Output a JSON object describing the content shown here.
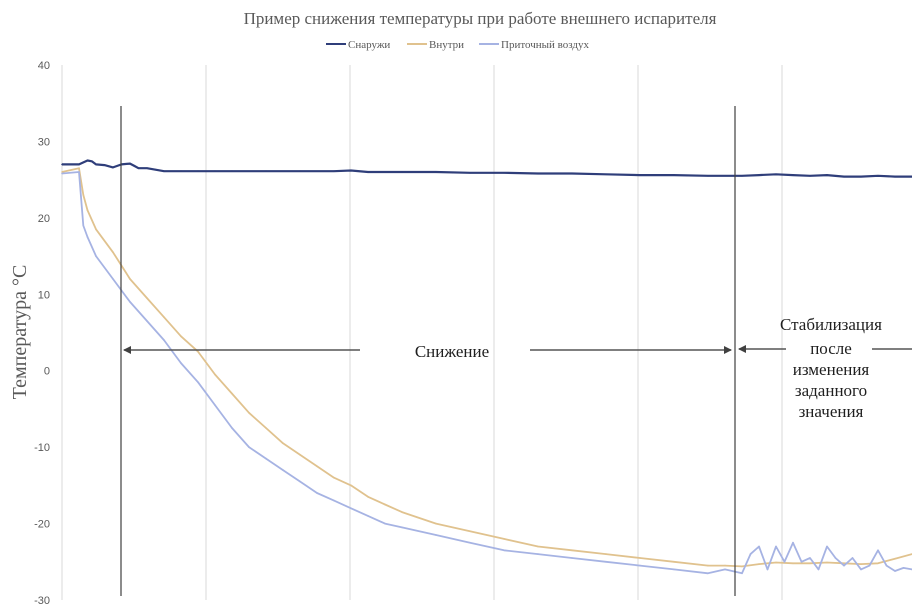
{
  "chart_data": {
    "type": "line",
    "title": "Пример снижения температуры при работе внешнего испарителя",
    "xlabel": "",
    "ylabel": "Температура °C",
    "ylim": [
      -30,
      40
    ],
    "yticks": [
      40,
      30,
      20,
      10,
      0,
      -10,
      -20,
      -30
    ],
    "xlim": [
      0,
      100
    ],
    "grid": "vertical gridlines",
    "legend": "top-center",
    "series": [
      {
        "name": "Снаружи",
        "color": "#2f3e7a",
        "x": [
          0,
          2,
          3,
          3.5,
          4,
          5,
          6,
          7,
          8,
          8.5,
          9,
          10,
          11,
          12,
          14,
          16,
          18,
          20,
          24,
          28,
          32,
          34,
          36,
          40,
          44,
          48,
          52,
          56,
          60,
          64,
          68,
          72,
          76,
          80,
          82,
          84,
          86,
          88,
          90,
          92,
          94,
          96,
          98,
          100
        ],
        "values": [
          27,
          27,
          27.5,
          27.4,
          27,
          26.9,
          26.6,
          27,
          27.1,
          26.8,
          26.5,
          26.5,
          26.3,
          26.1,
          26.1,
          26.1,
          26.1,
          26.1,
          26.1,
          26.1,
          26.1,
          26.2,
          26,
          26,
          26,
          25.9,
          25.9,
          25.8,
          25.8,
          25.7,
          25.6,
          25.6,
          25.5,
          25.5,
          25.6,
          25.7,
          25.6,
          25.5,
          25.6,
          25.4,
          25.4,
          25.5,
          25.4,
          25.4
        ]
      },
      {
        "name": "Внутри",
        "color": "#e0c28e",
        "x": [
          0,
          2,
          2.5,
          3,
          4,
          6,
          8,
          10,
          12,
          14,
          16,
          18,
          20,
          22,
          24,
          26,
          28,
          30,
          32,
          34,
          36,
          38,
          40,
          44,
          48,
          52,
          56,
          60,
          64,
          68,
          72,
          76,
          78,
          80,
          82,
          84,
          86,
          88,
          90,
          92,
          94,
          96,
          98,
          100
        ],
        "values": [
          26,
          26.5,
          23,
          21,
          18.5,
          15.5,
          12,
          9.5,
          7,
          4.5,
          2.5,
          -0.5,
          -3,
          -5.5,
          -7.5,
          -9.5,
          -11,
          -12.5,
          -14,
          -15,
          -16.5,
          -17.5,
          -18.5,
          -20,
          -21,
          -22,
          -23,
          -23.5,
          -24,
          -24.5,
          -25,
          -25.5,
          -25.5,
          -25.6,
          -25.3,
          -25.1,
          -25.2,
          -25.2,
          -25.1,
          -25.2,
          -25.3,
          -25.2,
          -24.6,
          -24
        ]
      },
      {
        "name": "Приточный воздух",
        "color": "#a6b3e3",
        "x": [
          0,
          2,
          2.5,
          3,
          4,
          6,
          8,
          10,
          12,
          14,
          16,
          18,
          20,
          22,
          24,
          26,
          28,
          30,
          32,
          34,
          36,
          38,
          40,
          44,
          48,
          52,
          56,
          60,
          64,
          68,
          72,
          76,
          78,
          80,
          81,
          82,
          83,
          84,
          85,
          86,
          87,
          88,
          89,
          90,
          91,
          92,
          93,
          94,
          95,
          96,
          97,
          98,
          99,
          100
        ],
        "values": [
          25.8,
          26,
          19,
          17.5,
          15,
          12,
          9,
          6.5,
          4,
          1,
          -1.5,
          -4.5,
          -7.5,
          -10,
          -11.5,
          -13,
          -14.5,
          -16,
          -17,
          -18,
          -19,
          -20,
          -20.5,
          -21.5,
          -22.5,
          -23.5,
          -24,
          -24.5,
          -25,
          -25.5,
          -26,
          -26.5,
          -26,
          -26.5,
          -24,
          -23,
          -26,
          -23,
          -25,
          -22.5,
          -25,
          -24.5,
          -26,
          -23,
          -24.5,
          -25.5,
          -24.5,
          -26,
          -25.5,
          -23.5,
          -25.5,
          -26.2,
          -25.8,
          -26
        ]
      }
    ],
    "annotations": {
      "decrease_label": "Снижение",
      "stabilization_lines": [
        "Стабилизация",
        "после",
        "изменения",
        "заданного",
        "значения"
      ]
    }
  }
}
